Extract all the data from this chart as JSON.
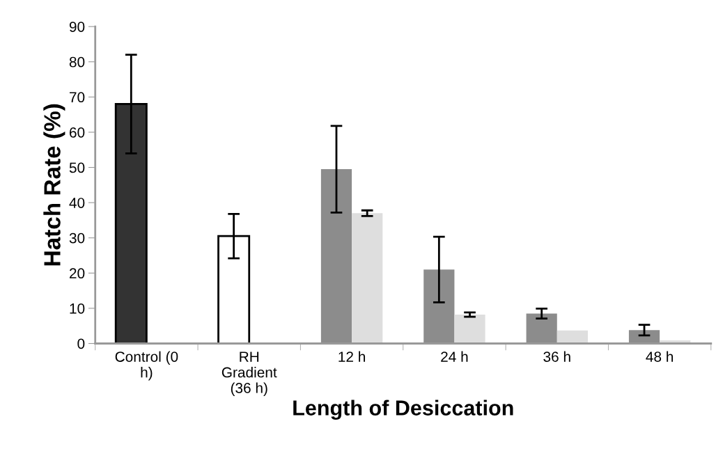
{
  "chart_data": {
    "type": "bar",
    "xlabel": "Length of Desiccation",
    "ylabel": "Hatch Rate (%)",
    "categories": [
      "Control (0\nh)",
      "RH\nGradient\n(36 h)",
      "12 h",
      "24 h",
      "36 h",
      "48 h"
    ],
    "series": [
      {
        "color": "#333333",
        "values": [
          68,
          null,
          null,
          null,
          null,
          null
        ],
        "errors": [
          14,
          null,
          null,
          null,
          null,
          null
        ]
      },
      {
        "color": "#ffffff",
        "values": [
          null,
          30.5,
          null,
          null,
          null,
          null
        ],
        "errors": [
          null,
          6.3,
          null,
          null,
          null,
          null
        ]
      },
      {
        "color": "#8c8c8c",
        "values": [
          null,
          null,
          49.5,
          21,
          8.5,
          3.8
        ],
        "errors": [
          null,
          null,
          12.3,
          9.3,
          1.4,
          1.5
        ]
      },
      {
        "color": "#dedede",
        "values": [
          null,
          null,
          37,
          8.2,
          3.7,
          0.9
        ],
        "errors": [
          null,
          null,
          0.8,
          0.6,
          null,
          null
        ]
      }
    ],
    "ylim": [
      0,
      90
    ],
    "yticks": [
      0,
      10,
      20,
      30,
      40,
      50,
      60,
      70,
      80,
      90
    ],
    "grid": false,
    "legend": false
  }
}
